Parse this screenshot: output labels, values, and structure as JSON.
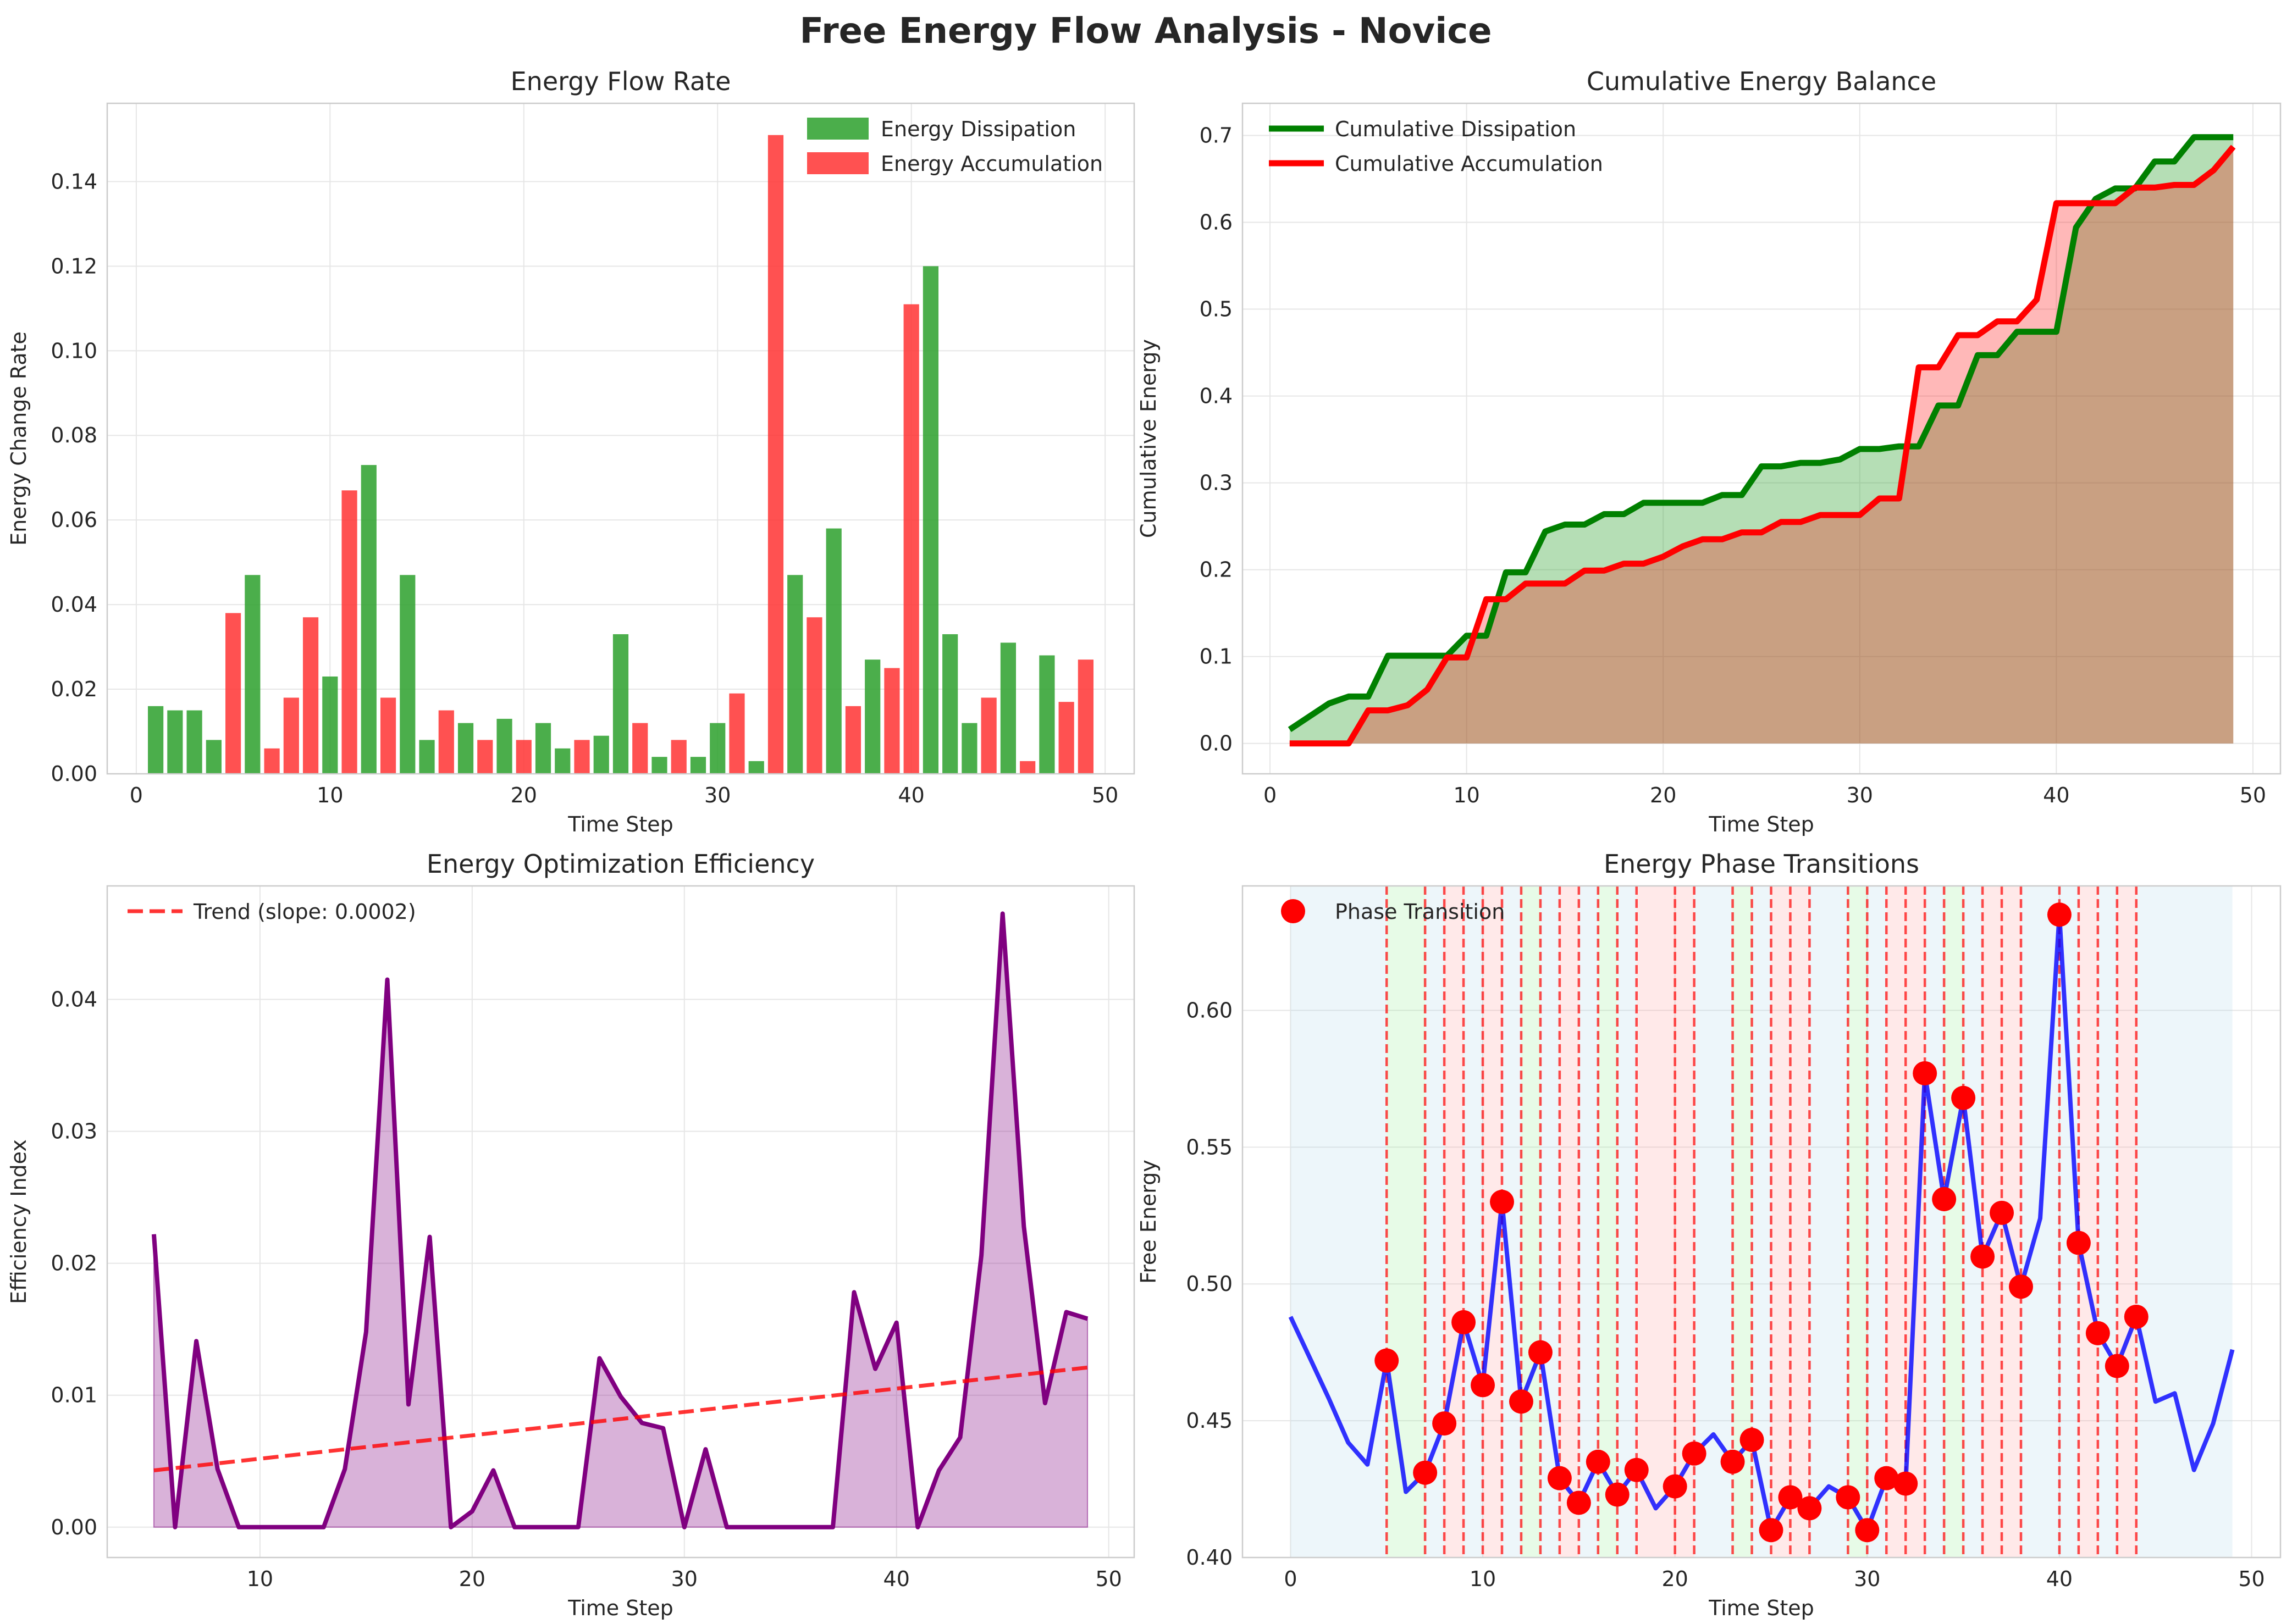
{
  "figure": {
    "title": "Free Energy Flow Analysis - Novice"
  },
  "chart_data": [
    {
      "type": "bar",
      "title": "Energy Flow Rate",
      "xlabel": "Time Step",
      "ylabel": "Energy Change Rate",
      "xlim": [
        -1.5,
        51.5
      ],
      "ylim": [
        0,
        0.1585
      ],
      "xticks": [
        0,
        10,
        20,
        30,
        40,
        50
      ],
      "yticks": [
        0.0,
        0.02,
        0.04,
        0.06,
        0.08,
        0.1,
        0.12,
        0.14
      ],
      "grid": true,
      "legend_position": "top-right",
      "series": [
        {
          "name": "Energy Dissipation",
          "color": "#2ca02c",
          "x": [
            1,
            2,
            3,
            4,
            6,
            10,
            12,
            14,
            15,
            17,
            19,
            21,
            22,
            24,
            25,
            27,
            29,
            30,
            32,
            34,
            36,
            38,
            41,
            42,
            43,
            45,
            47
          ],
          "values": [
            0.016,
            0.015,
            0.015,
            0.008,
            0.047,
            0.023,
            0.073,
            0.047,
            0.008,
            0.012,
            0.013,
            0.012,
            0.006,
            0.009,
            0.033,
            0.004,
            0.004,
            0.012,
            0.003,
            0.047,
            0.058,
            0.027,
            0.12,
            0.033,
            0.012,
            0.031,
            0.028
          ]
        },
        {
          "name": "Energy Accumulation",
          "color": "#ff3333",
          "x": [
            5,
            7,
            8,
            9,
            11,
            13,
            16,
            18,
            20,
            23,
            26,
            28,
            31,
            33,
            35,
            37,
            39,
            40,
            44,
            46,
            48,
            49
          ],
          "values": [
            0.038,
            0.006,
            0.018,
            0.037,
            0.067,
            0.018,
            0.015,
            0.008,
            0.008,
            0.008,
            0.012,
            0.008,
            0.019,
            0.151,
            0.037,
            0.016,
            0.025,
            0.111,
            0.018,
            0.003,
            0.017,
            0.027
          ]
        }
      ]
    },
    {
      "type": "area",
      "title": "Cumulative Energy Balance",
      "xlabel": "Time Step",
      "ylabel": "Cumulative Energy",
      "xlim": [
        -1.4,
        51.4
      ],
      "ylim": [
        -0.035,
        0.737
      ],
      "xticks": [
        0,
        10,
        20,
        30,
        40,
        50
      ],
      "yticks": [
        0.0,
        0.1,
        0.2,
        0.3,
        0.4,
        0.5,
        0.6,
        0.7
      ],
      "grid": true,
      "legend_position": "top-left",
      "x": [
        1,
        2,
        3,
        4,
        5,
        6,
        7,
        8,
        9,
        10,
        11,
        12,
        13,
        14,
        15,
        16,
        17,
        18,
        19,
        20,
        21,
        22,
        23,
        24,
        25,
        26,
        27,
        28,
        29,
        30,
        31,
        32,
        33,
        34,
        35,
        36,
        37,
        38,
        39,
        40,
        41,
        42,
        43,
        44,
        45,
        46,
        47,
        48,
        49
      ],
      "series": [
        {
          "name": "Cumulative Dissipation",
          "color": "#008000",
          "values": [
            0.016,
            0.031,
            0.046,
            0.054,
            0.054,
            0.101,
            0.101,
            0.101,
            0.101,
            0.124,
            0.124,
            0.197,
            0.197,
            0.244,
            0.252,
            0.252,
            0.264,
            0.264,
            0.277,
            0.277,
            0.277,
            0.277,
            0.286,
            0.286,
            0.319,
            0.319,
            0.323,
            0.323,
            0.327,
            0.339,
            0.339,
            0.342,
            0.342,
            0.389,
            0.389,
            0.447,
            0.447,
            0.474,
            0.474,
            0.474,
            0.594,
            0.627,
            0.639,
            0.639,
            0.67,
            0.67,
            0.698,
            0.698,
            0.698
          ]
        },
        {
          "name": "Cumulative Accumulation",
          "color": "#ff0000",
          "values": [
            0.0,
            0.0,
            0.0,
            0.0,
            0.038,
            0.038,
            0.044,
            0.062,
            0.099,
            0.099,
            0.166,
            0.166,
            0.184,
            0.184,
            0.184,
            0.199,
            0.199,
            0.207,
            0.207,
            0.215,
            0.227,
            0.235,
            0.235,
            0.243,
            0.243,
            0.255,
            0.255,
            0.263,
            0.263,
            0.263,
            0.282,
            0.282,
            0.433,
            0.433,
            0.47,
            0.47,
            0.486,
            0.486,
            0.511,
            0.622,
            0.622,
            0.622,
            0.622,
            0.64,
            0.64,
            0.643,
            0.643,
            0.66,
            0.687
          ]
        }
      ]
    },
    {
      "type": "line",
      "title": "Energy Optimization Efficiency",
      "xlabel": "Time Step",
      "ylabel": "Efficiency Index",
      "xlim": [
        2.8,
        51.2
      ],
      "ylim": [
        -0.0023,
        0.0486
      ],
      "xticks": [
        10,
        20,
        30,
        40,
        50
      ],
      "yticks": [
        0.0,
        0.01,
        0.02,
        0.03,
        0.04
      ],
      "grid": true,
      "legend_position": "top-left",
      "series": [
        {
          "name": "",
          "color": "#800080",
          "x": [
            5,
            6,
            7,
            8,
            9,
            10,
            11,
            12,
            13,
            14,
            15,
            16,
            17,
            18,
            19,
            20,
            21,
            22,
            23,
            24,
            25,
            26,
            27,
            28,
            29,
            30,
            31,
            32,
            33,
            34,
            35,
            36,
            37,
            38,
            39,
            40,
            41,
            42,
            43,
            44,
            45,
            46,
            47,
            48,
            49
          ],
          "values": [
            0.0222,
            0.0,
            0.0141,
            0.0044,
            0.0,
            0.0,
            0.0,
            0.0,
            0.0,
            0.0044,
            0.0148,
            0.0415,
            0.0093,
            0.022,
            0.0,
            0.0012,
            0.0043,
            0.0,
            0.0,
            0.0,
            0.0,
            0.0128,
            0.0099,
            0.0079,
            0.0075,
            0.0,
            0.0059,
            0.0,
            0.0,
            0.0,
            0.0,
            0.0,
            0.0,
            0.0178,
            0.012,
            0.0155,
            0.0,
            0.0043,
            0.0068,
            0.0206,
            0.0465,
            0.0228,
            0.0094,
            0.0163,
            0.0158
          ]
        },
        {
          "name": "Trend (slope: 0.0002)",
          "color": "#ff0000",
          "x": [
            5,
            49
          ],
          "values": [
            0.0043,
            0.0121
          ]
        }
      ]
    },
    {
      "type": "line",
      "title": "Energy Phase Transitions",
      "xlabel": "Time Step",
      "ylabel": "Free Energy",
      "xlim": [
        -2.5,
        51.5
      ],
      "ylim": [
        0.4,
        0.6455
      ],
      "xticks": [
        0,
        10,
        20,
        30,
        40,
        50
      ],
      "yticks": [
        0.4,
        0.45,
        0.5,
        0.55,
        0.6
      ],
      "grid": true,
      "legend_position": "top-left",
      "line": {
        "color": "#0000ff",
        "x": [
          0,
          1,
          2,
          3,
          4,
          5,
          6,
          7,
          8,
          9,
          10,
          11,
          12,
          13,
          14,
          15,
          16,
          17,
          18,
          19,
          20,
          21,
          22,
          23,
          24,
          25,
          26,
          27,
          28,
          29,
          30,
          31,
          32,
          33,
          34,
          35,
          36,
          37,
          38,
          39,
          40,
          41,
          42,
          43,
          44,
          45,
          46,
          47,
          48,
          49
        ],
        "values": [
          0.488,
          0.473,
          0.458,
          0.442,
          0.434,
          0.472,
          0.424,
          0.431,
          0.449,
          0.486,
          0.463,
          0.53,
          0.457,
          0.475,
          0.429,
          0.42,
          0.435,
          0.423,
          0.432,
          0.418,
          0.426,
          0.438,
          0.445,
          0.435,
          0.443,
          0.41,
          0.422,
          0.418,
          0.426,
          0.422,
          0.41,
          0.429,
          0.427,
          0.577,
          0.531,
          0.568,
          0.51,
          0.526,
          0.499,
          0.524,
          0.635,
          0.515,
          0.482,
          0.47,
          0.488,
          0.457,
          0.46,
          0.432,
          0.449,
          0.476
        ]
      },
      "transitions": {
        "name": "Phase Transition",
        "color": "#ff0000",
        "x": [
          5,
          7,
          8,
          9,
          10,
          11,
          12,
          13,
          14,
          15,
          16,
          17,
          18,
          20,
          21,
          23,
          24,
          25,
          26,
          27,
          29,
          30,
          31,
          32,
          33,
          34,
          35,
          36,
          37,
          38,
          40,
          41,
          42,
          43,
          44
        ],
        "values": [
          0.472,
          0.431,
          0.449,
          0.486,
          0.463,
          0.53,
          0.457,
          0.475,
          0.429,
          0.42,
          0.435,
          0.423,
          0.432,
          0.426,
          0.438,
          0.435,
          0.443,
          0.41,
          0.422,
          0.418,
          0.422,
          0.41,
          0.429,
          0.427,
          0.577,
          0.531,
          0.568,
          0.51,
          0.526,
          0.499,
          0.635,
          0.515,
          0.482,
          0.47,
          0.488
        ]
      },
      "regions": [
        {
          "start": 0,
          "end": 5,
          "color": "#add8e6"
        },
        {
          "start": 5,
          "end": 7,
          "color": "#90ee90"
        },
        {
          "start": 7,
          "end": 8,
          "color": "#add8e6"
        },
        {
          "start": 8,
          "end": 9,
          "color": "#ff9999"
        },
        {
          "start": 9,
          "end": 10,
          "color": "#add8e6"
        },
        {
          "start": 10,
          "end": 11,
          "color": "#ff9999"
        },
        {
          "start": 11,
          "end": 12,
          "color": "#add8e6"
        },
        {
          "start": 12,
          "end": 13,
          "color": "#90ee90"
        },
        {
          "start": 13,
          "end": 14,
          "color": "#add8e6"
        },
        {
          "start": 14,
          "end": 15,
          "color": "#ff9999"
        },
        {
          "start": 15,
          "end": 16,
          "color": "#add8e6"
        },
        {
          "start": 16,
          "end": 17,
          "color": "#90ee90"
        },
        {
          "start": 17,
          "end": 18,
          "color": "#add8e6"
        },
        {
          "start": 18,
          "end": 20,
          "color": "#ff9999"
        },
        {
          "start": 20,
          "end": 21,
          "color": "#ff9999"
        },
        {
          "start": 21,
          "end": 23,
          "color": "#add8e6"
        },
        {
          "start": 23,
          "end": 24,
          "color": "#90ee90"
        },
        {
          "start": 24,
          "end": 25,
          "color": "#add8e6"
        },
        {
          "start": 25,
          "end": 26,
          "color": "#ff9999"
        },
        {
          "start": 26,
          "end": 27,
          "color": "#ff9999"
        },
        {
          "start": 27,
          "end": 29,
          "color": "#add8e6"
        },
        {
          "start": 29,
          "end": 30,
          "color": "#90ee90"
        },
        {
          "start": 30,
          "end": 31,
          "color": "#add8e6"
        },
        {
          "start": 31,
          "end": 32,
          "color": "#ff9999"
        },
        {
          "start": 32,
          "end": 33,
          "color": "#ff9999"
        },
        {
          "start": 33,
          "end": 34,
          "color": "#add8e6"
        },
        {
          "start": 34,
          "end": 35,
          "color": "#90ee90"
        },
        {
          "start": 35,
          "end": 36,
          "color": "#add8e6"
        },
        {
          "start": 36,
          "end": 37,
          "color": "#ff9999"
        },
        {
          "start": 37,
          "end": 38,
          "color": "#ff9999"
        },
        {
          "start": 38,
          "end": 40,
          "color": "#add8e6"
        },
        {
          "start": 40,
          "end": 41,
          "color": "#add8e6"
        },
        {
          "start": 41,
          "end": 42,
          "color": "#ff9999"
        },
        {
          "start": 42,
          "end": 43,
          "color": "#add8e6"
        },
        {
          "start": 43,
          "end": 44,
          "color": "#ff9999"
        },
        {
          "start": 44,
          "end": 49,
          "color": "#add8e6"
        }
      ]
    }
  ]
}
